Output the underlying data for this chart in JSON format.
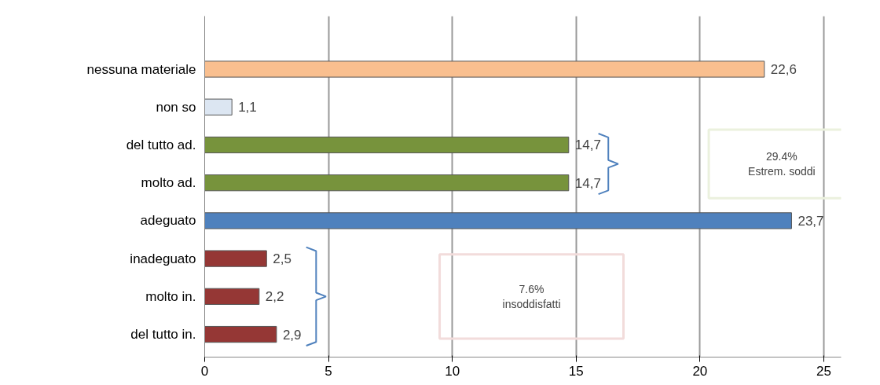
{
  "chart_data": {
    "type": "bar",
    "orientation": "horizontal",
    "categories": [
      "nessuna materiale",
      "non so",
      "del tutto ad.",
      "molto ad.",
      "adeguato",
      "inadeguato",
      "molto in.",
      "del tutto in."
    ],
    "values": [
      22.6,
      1.1,
      14.7,
      14.7,
      23.7,
      2.5,
      2.2,
      2.9
    ],
    "colors": [
      "#f9bf8f",
      "#dce6f2",
      "#77933c",
      "#77933c",
      "#4f81bd",
      "#953735",
      "#953735",
      "#953735"
    ],
    "value_labels": [
      "22,6",
      "1,1",
      "14,7",
      "14,7",
      "23,7",
      "2,5",
      "2,2",
      "2,9"
    ],
    "xlim": [
      0,
      25.7
    ],
    "xticks": [
      0,
      5,
      10,
      15,
      20,
      25
    ],
    "grid": "x",
    "annotations": [
      "29.4%\nEstrem. soddi",
      "7.6%\ninsoddisfatti"
    ]
  }
}
